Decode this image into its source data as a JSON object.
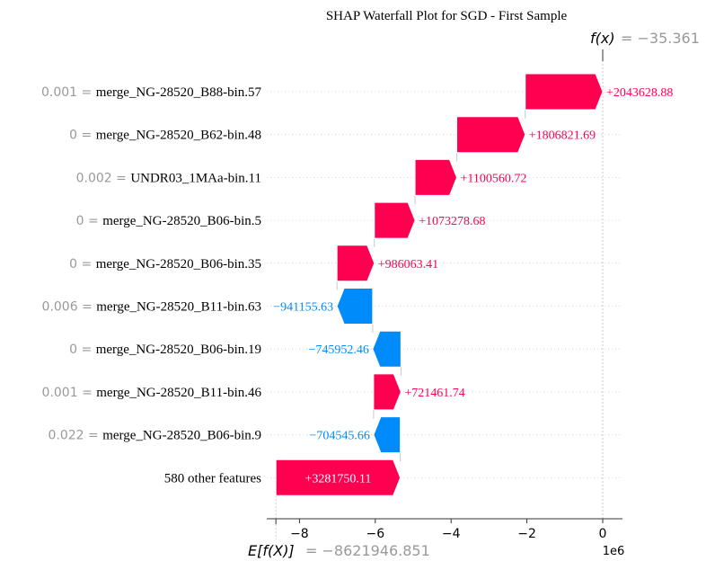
{
  "chart_data": {
    "type": "bar",
    "title": "SHAP Waterfall Plot for SGD - First Sample",
    "fx": {
      "label": "f(x)",
      "value": "= −35.361"
    },
    "efx": {
      "label": "E[f(X)]",
      "value": "= −8621946.851"
    },
    "axis_multiplier": "1e6",
    "xlim": [
      -8.7,
      0.55
    ],
    "xticks": [
      -8,
      -6,
      -4,
      -2,
      0
    ],
    "xtick_labels": [
      "−8",
      "−6",
      "−4",
      "−2",
      "0"
    ],
    "base_value": -8621946.851,
    "final_value": -35.361,
    "positive_color": "#ff0051",
    "negative_color": "#008bfb",
    "features": [
      {
        "value": "0.001",
        "name": "merge_NG-28520_B88-bin.57",
        "shap": 2043628.88,
        "label": "+2043628.88"
      },
      {
        "value": "0",
        "name": "merge_NG-28520_B62-bin.48",
        "shap": 1806821.69,
        "label": "+1806821.69"
      },
      {
        "value": "0.002",
        "name": "UNDR03_1MAa-bin.11",
        "shap": 1100560.72,
        "label": "+1100560.72"
      },
      {
        "value": "0",
        "name": "merge_NG-28520_B06-bin.5",
        "shap": 1073278.68,
        "label": "+1073278.68"
      },
      {
        "value": "0",
        "name": "merge_NG-28520_B06-bin.35",
        "shap": 986063.41,
        "label": "+986063.41"
      },
      {
        "value": "0.006",
        "name": "merge_NG-28520_B11-bin.63",
        "shap": -941155.63,
        "label": "−941155.63"
      },
      {
        "value": "0",
        "name": "merge_NG-28520_B06-bin.19",
        "shap": -745952.46,
        "label": "−745952.46"
      },
      {
        "value": "0.001",
        "name": "merge_NG-28520_B11-bin.46",
        "shap": 721461.74,
        "label": "+721461.74"
      },
      {
        "value": "0.022",
        "name": "merge_NG-28520_B06-bin.9",
        "shap": -704545.66,
        "label": "−704545.66"
      },
      {
        "value": "",
        "name": "580 other features",
        "shap": 3281750.11,
        "label": "+3281750.11"
      }
    ]
  }
}
